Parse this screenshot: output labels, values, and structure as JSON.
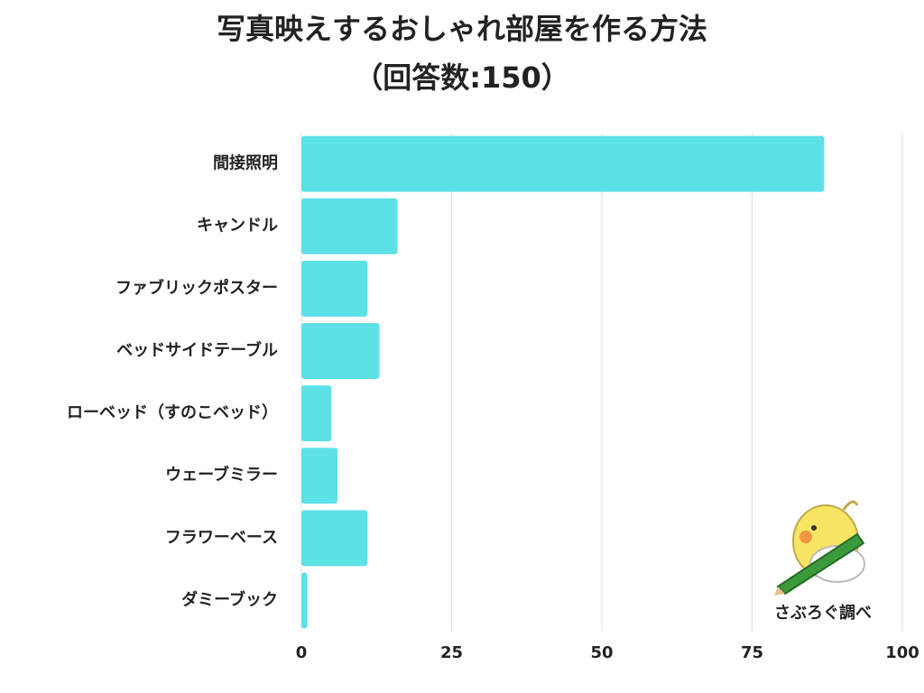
{
  "chart_data": {
    "type": "bar",
    "title": "写真映えするおしゃれ部屋を作る方法",
    "subtitle": "（回答数:150）",
    "categories": [
      "間接照明",
      "キャンドル",
      "ファブリックポスター",
      "ベッドサイドテーブル",
      "ローベッド（すのこベッド）",
      "ウェーブミラー",
      "フラワーベース",
      "ダミーブック"
    ],
    "values": [
      87,
      16,
      11,
      13,
      5,
      6,
      11,
      1
    ],
    "color": "#5ce1e6",
    "xlim": [
      0,
      100
    ],
    "xticks": [
      0,
      25,
      50,
      75,
      100
    ],
    "grid": true,
    "annotation": "さぶろぐ調べ"
  }
}
